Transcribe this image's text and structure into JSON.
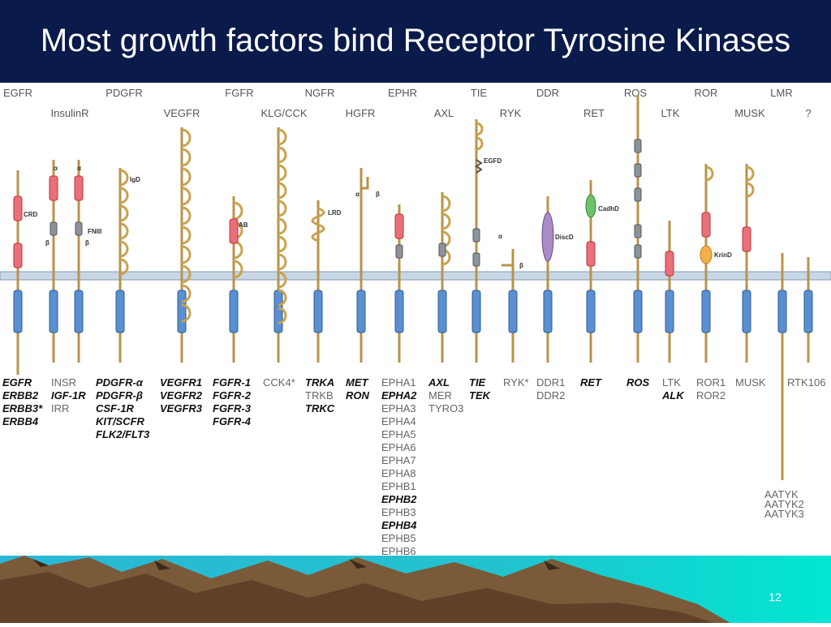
{
  "slide": {
    "title": "Most growth factors bind Receptor Tyrosine Kinases",
    "page_number": "12"
  },
  "family_labels_top": [
    "EGFR",
    "PDGFR",
    "FGFR",
    "NGFR",
    "EPHR",
    "TIE",
    "DDR",
    "ROS",
    "ROR",
    "LMR"
  ],
  "family_labels_second": [
    "InsulinR",
    "VEGFR",
    "KLG/CCK",
    "HGFR",
    "AXL",
    "RYK",
    "RET",
    "LTK",
    "MUSK",
    "?"
  ],
  "domain_labels": [
    "CRD",
    "FNIII",
    "IgD",
    "AB",
    "LRD",
    "EGFD",
    "DiscD",
    "CadhD",
    "KrinD"
  ],
  "greek": [
    "α",
    "α",
    "β",
    "β",
    "α",
    "β",
    "α",
    "β"
  ],
  "members": [
    [
      {
        "t": "EGFR",
        "b": true
      },
      {
        "t": "ERBB2",
        "b": true
      },
      {
        "t": "ERBB3*",
        "b": true
      },
      {
        "t": "ERBB4",
        "b": true
      }
    ],
    [
      {
        "t": "INSR",
        "b": false
      },
      {
        "t": "IGF-1R",
        "b": true
      },
      {
        "t": "IRR",
        "b": false
      }
    ],
    [
      {
        "t": "PDGFR-α",
        "b": true
      },
      {
        "t": "PDGFR-β",
        "b": true
      },
      {
        "t": "CSF-1R",
        "b": true
      },
      {
        "t": "KIT/SCFR",
        "b": true
      },
      {
        "t": "FLK2/FLT3",
        "b": true
      }
    ],
    [
      {
        "t": "VEGFR1",
        "b": true
      },
      {
        "t": "VEGFR2",
        "b": true
      },
      {
        "t": "VEGFR3",
        "b": true
      }
    ],
    [
      {
        "t": "FGFR-1",
        "b": true
      },
      {
        "t": "FGFR-2",
        "b": true
      },
      {
        "t": "FGFR-3",
        "b": true
      },
      {
        "t": "FGFR-4",
        "b": true
      }
    ],
    [
      {
        "t": "CCK4*",
        "b": false
      }
    ],
    [
      {
        "t": "TRKA",
        "b": true
      },
      {
        "t": "TRKB",
        "b": false
      },
      {
        "t": "TRKC",
        "b": true
      }
    ],
    [
      {
        "t": "MET",
        "b": true
      },
      {
        "t": "RON",
        "b": true
      }
    ],
    [
      {
        "t": "EPHA1",
        "b": false
      },
      {
        "t": "EPHA2",
        "b": true
      },
      {
        "t": "EPHA3",
        "b": false
      },
      {
        "t": "EPHA4",
        "b": false
      },
      {
        "t": "EPHA5",
        "b": false
      },
      {
        "t": "EPHA6",
        "b": false
      },
      {
        "t": "EPHA7",
        "b": false
      },
      {
        "t": "EPHA8",
        "b": false
      },
      {
        "t": "EPHB1",
        "b": false
      },
      {
        "t": "EPHB2",
        "b": true
      },
      {
        "t": "EPHB3",
        "b": false
      },
      {
        "t": "EPHB4",
        "b": true
      },
      {
        "t": "EPHB5",
        "b": false
      },
      {
        "t": "EPHB6",
        "b": false
      }
    ],
    [
      {
        "t": "AXL",
        "b": true
      },
      {
        "t": "MER",
        "b": false
      },
      {
        "t": "TYRO3",
        "b": false
      }
    ],
    [
      {
        "t": "TIE",
        "b": true
      },
      {
        "t": "TEK",
        "b": true
      }
    ],
    [
      {
        "t": "RYK*",
        "b": false
      }
    ],
    [
      {
        "t": "DDR1",
        "b": false
      },
      {
        "t": "DDR2",
        "b": false
      }
    ],
    [
      {
        "t": "RET",
        "b": true
      }
    ],
    [
      {
        "t": "ROS",
        "b": true
      }
    ],
    [
      {
        "t": "LTK",
        "b": false
      },
      {
        "t": "ALK",
        "b": true
      }
    ],
    [
      {
        "t": "ROR1",
        "b": false
      },
      {
        "t": "ROR2",
        "b": false
      }
    ],
    [
      {
        "t": "MUSK",
        "b": false
      }
    ],
    [
      {
        "t": "RTK106",
        "b": false
      }
    ]
  ],
  "lmr_members": [
    "AATYK",
    "AATYK2",
    "AATYK3"
  ]
}
